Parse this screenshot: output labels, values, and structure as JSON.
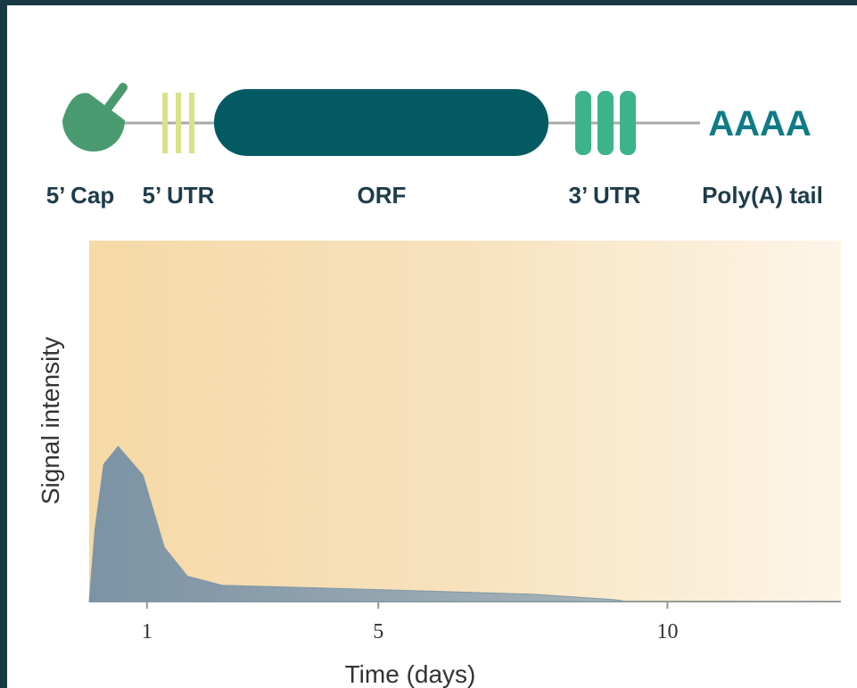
{
  "diagram": {
    "poly_a": "AAAA",
    "labels": [
      "5’ Cap",
      "5’ UTR",
      "ORF",
      "3’ UTR",
      "Poly(A) tail"
    ]
  },
  "chart_data": {
    "type": "area",
    "xlabel": "Time (days)",
    "ylabel": "Signal intensity",
    "x": [
      0,
      0.1,
      0.25,
      0.5,
      0.93,
      1.3,
      1.7,
      2.3,
      4.6,
      7.7,
      9.1,
      9.3
    ],
    "series": [
      {
        "color": "#7f98a8",
        "values": [
          0,
          0.2,
          0.38,
          0.43,
          0.35,
          0.15,
          0.07,
          0.045,
          0.035,
          0.02,
          0.005,
          0
        ]
      }
    ],
    "xlim": [
      0,
      13
    ],
    "ylim": [
      0,
      1
    ],
    "xticks": [
      1,
      5,
      10
    ]
  }
}
